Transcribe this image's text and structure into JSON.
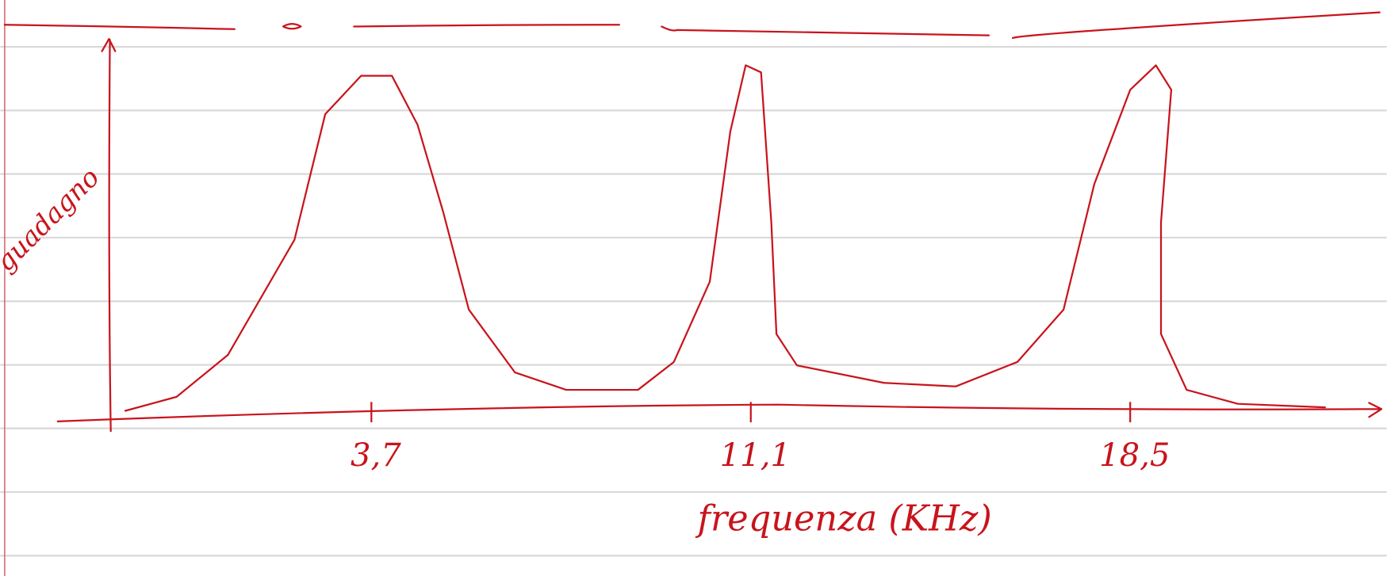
{
  "chart_data": {
    "type": "line",
    "xlabel": "frequenza (KHz)",
    "ylabel": "guadagno",
    "x": [
      -1.1,
      -0.1,
      0.9,
      2.2,
      2.8,
      3.5,
      4.1,
      4.6,
      5.1,
      5.6,
      6.5,
      7.5,
      8.9,
      9.6,
      10.3,
      10.7,
      11.0,
      11.3,
      11.5,
      11.6,
      12.0,
      13.7,
      15.1,
      16.3,
      17.2,
      17.8,
      18.5,
      19.0,
      19.3,
      19.1,
      19.1,
      19.6,
      20.6,
      22.3
    ],
    "values": [
      0,
      0.04,
      0.16,
      0.49,
      0.85,
      0.96,
      0.96,
      0.82,
      0.57,
      0.29,
      0.11,
      0.06,
      0.06,
      0.14,
      0.37,
      0.8,
      0.99,
      0.97,
      0.54,
      0.22,
      0.13,
      0.08,
      0.07,
      0.14,
      0.29,
      0.65,
      0.92,
      0.99,
      0.92,
      0.54,
      0.22,
      0.06,
      0.02,
      0.01
    ],
    "color": "#c8141c",
    "xlim": [
      -1.4,
      23.4
    ],
    "ylim": [
      0,
      1
    ],
    "xticks": [
      {
        "value": 3.7,
        "label": "3,7"
      },
      {
        "value": 11.1,
        "label": "11,1"
      },
      {
        "value": 18.5,
        "label": "18,5"
      }
    ]
  }
}
